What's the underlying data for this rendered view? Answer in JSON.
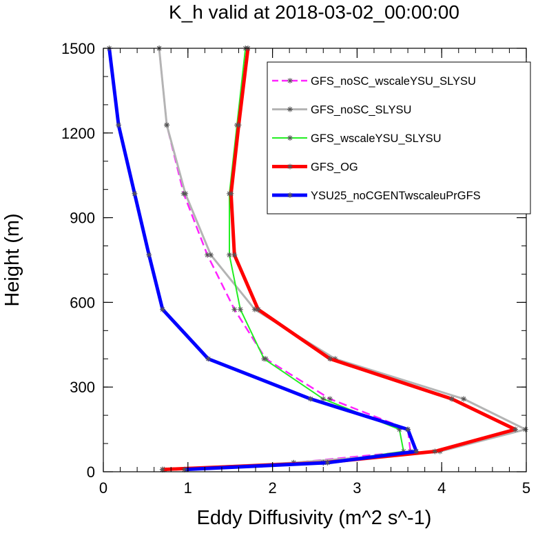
{
  "chart_data": {
    "type": "line",
    "title": "K_h valid at 2018-03-02_00:00:00",
    "xlabel": "Eddy Diffusivity (m^2 s^-1)",
    "ylabel": "Height (m)",
    "xlim": [
      0,
      5
    ],
    "ylim": [
      0,
      1500
    ],
    "xticks": [
      0,
      1,
      2,
      3,
      4,
      5
    ],
    "xtick_labels": [
      "0",
      "1",
      "2",
      "3",
      "4",
      "5"
    ],
    "yticks": [
      0,
      300,
      600,
      900,
      1200,
      1500
    ],
    "ytick_labels": [
      "0",
      "300",
      "600",
      "900",
      "1200",
      "1500"
    ],
    "grid": false,
    "legend_position": "top-right",
    "series": [
      {
        "name": "GFS_noSC_wscaleYSU_SLYSU",
        "color": "#ff22ff",
        "dash": "dashed",
        "heights": [
          8,
          32,
          72,
          150,
          258,
          400,
          575,
          768,
          985,
          1228,
          1500
        ],
        "values": [
          0.72,
          2.25,
          3.63,
          3.6,
          2.68,
          1.92,
          1.55,
          1.23,
          0.95,
          0.75,
          0.66
        ]
      },
      {
        "name": "GFS_noSC_SLYSU",
        "color": "#b4b4b4",
        "dash": "solid",
        "heights": [
          8,
          32,
          72,
          150,
          258,
          400,
          575,
          768,
          985,
          1228,
          1500
        ],
        "values": [
          0.7,
          2.25,
          3.98,
          4.99,
          4.26,
          2.74,
          1.79,
          1.27,
          0.97,
          0.75,
          0.66
        ]
      },
      {
        "name": "GFS_wscaleYSU_SLYSU",
        "color": "#22ee22",
        "dash": "solid",
        "heights": [
          8,
          32,
          72,
          150,
          258,
          400,
          575,
          768,
          985,
          1228,
          1500
        ],
        "values": [
          0.7,
          2.6,
          3.55,
          3.5,
          2.6,
          1.9,
          1.62,
          1.49,
          1.49,
          1.58,
          1.68
        ]
      },
      {
        "name": "GFS_OG",
        "color": "#ff0000",
        "dash": "solid",
        "heights": [
          8,
          32,
          72,
          150,
          258,
          400,
          575,
          768,
          985,
          1228,
          1500
        ],
        "values": [
          0.7,
          2.6,
          3.92,
          4.87,
          4.12,
          2.68,
          1.83,
          1.55,
          1.51,
          1.6,
          1.71
        ]
      },
      {
        "name": "YSU25_noCGENTwscaleuPrGFS",
        "color": "#0000ff",
        "dash": "solid",
        "heights": [
          8,
          32,
          72,
          150,
          258,
          400,
          575,
          768,
          985,
          1228,
          1500
        ],
        "values": [
          0.96,
          2.65,
          3.7,
          3.6,
          2.45,
          1.24,
          0.7,
          0.54,
          0.37,
          0.18,
          0.07
        ]
      }
    ]
  }
}
